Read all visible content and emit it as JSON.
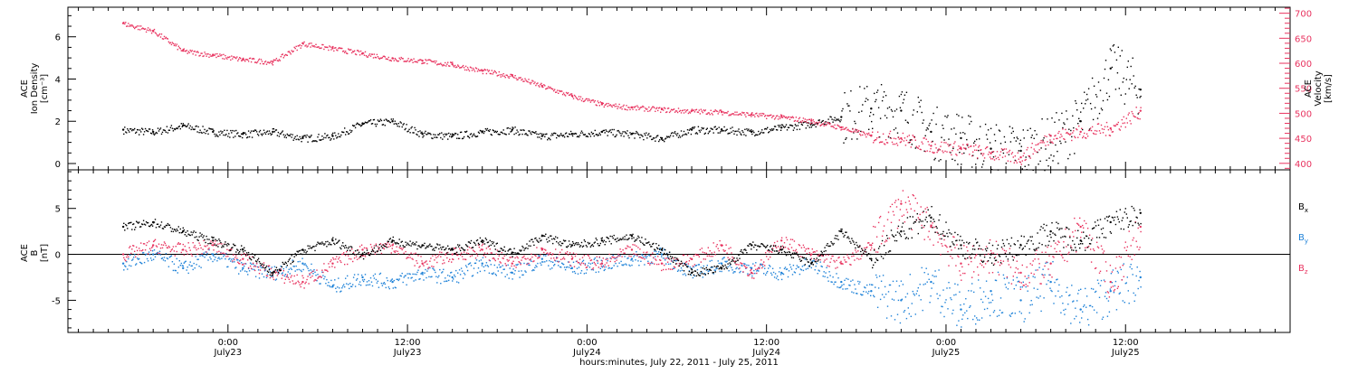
{
  "colors": {
    "black": "#000000",
    "pink": "#e8335f",
    "blue": "#1e82d8"
  },
  "chart_data": [
    {
      "type": "scatter",
      "panel": "top",
      "left_label_lines": [
        "ACE",
        "Ion Density",
        "[cm⁻³]"
      ],
      "right_label_lines": [
        "ACE",
        "Velocity",
        "[km/s]"
      ],
      "left_ylim": [
        -0.3,
        7.4
      ],
      "left_yticks": [
        0,
        2,
        4,
        6
      ],
      "right_ylim": [
        387,
        712
      ],
      "right_yticks": [
        400,
        450,
        500,
        550,
        600,
        650,
        700
      ],
      "series": [
        {
          "axis": "left",
          "color": "black",
          "x": [
            0,
            2,
            4,
            6,
            8,
            10,
            12,
            14,
            16,
            18,
            20,
            22,
            24,
            26,
            28,
            30,
            32,
            34,
            36,
            38,
            40,
            42,
            44,
            46,
            48,
            50,
            52,
            54,
            56,
            58,
            60,
            62,
            64,
            66,
            68
          ],
          "y": [
            1.6,
            1.5,
            1.8,
            1.5,
            1.4,
            1.5,
            1.2,
            1.3,
            1.9,
            2.0,
            1.4,
            1.3,
            1.5,
            1.6,
            1.3,
            1.4,
            1.5,
            1.4,
            1.2,
            1.6,
            1.6,
            1.5,
            1.7,
            1.9,
            2.2,
            2.6,
            2.5,
            1.5,
            1.2,
            0.7,
            0.6,
            1.0,
            2.0,
            4.5,
            3.5
          ]
        },
        {
          "axis": "right",
          "color": "pink",
          "x": [
            0,
            2,
            4,
            6,
            8,
            10,
            12,
            14,
            16,
            18,
            20,
            22,
            24,
            26,
            28,
            30,
            32,
            34,
            36,
            38,
            40,
            42,
            44,
            46,
            48,
            50,
            52,
            54,
            56,
            58,
            60,
            62,
            64,
            66,
            68
          ],
          "y": [
            680,
            665,
            625,
            617,
            608,
            603,
            640,
            630,
            620,
            610,
            605,
            598,
            585,
            575,
            555,
            535,
            518,
            512,
            508,
            505,
            503,
            498,
            493,
            485,
            472,
            455,
            450,
            435,
            430,
            420,
            412,
            455,
            463,
            470,
            505
          ]
        }
      ]
    },
    {
      "type": "scatter",
      "panel": "bottom",
      "left_label_lines": [
        "ACE",
        "B",
        "[nT]"
      ],
      "ylim": [
        -8.5,
        9.2
      ],
      "yticks": [
        -5,
        0,
        5
      ],
      "xlabel": "hours:minutes, July 22, 2011 - July 25, 2011",
      "x_tick_labels": [
        {
          "time": "0:00",
          "date": "July23",
          "hour": 7
        },
        {
          "time": "12:00",
          "date": "July23",
          "hour": 19
        },
        {
          "time": "0:00",
          "date": "July24",
          "hour": 31
        },
        {
          "time": "12:00",
          "date": "July24",
          "hour": 43
        },
        {
          "time": "0:00",
          "date": "July25",
          "hour": 55
        },
        {
          "time": "12:00",
          "date": "July25",
          "hour": 67
        }
      ],
      "xlim": [
        -3.7,
        78
      ],
      "legend": [
        {
          "name": "B",
          "sub": "x",
          "color": "black"
        },
        {
          "name": "B",
          "sub": "y",
          "color": "blue"
        },
        {
          "name": "B",
          "sub": "z",
          "color": "pink"
        }
      ],
      "series": [
        {
          "name": "Bx",
          "color": "black",
          "x": [
            0,
            2,
            4,
            6,
            8,
            10,
            12,
            14,
            16,
            18,
            20,
            22,
            24,
            26,
            28,
            30,
            32,
            34,
            36,
            38,
            40,
            42,
            44,
            46,
            48,
            50,
            52,
            54,
            56,
            58,
            60,
            62,
            64,
            66,
            68
          ],
          "y": [
            3,
            3.5,
            2.5,
            1.5,
            0.5,
            -2,
            0.5,
            1.5,
            0,
            1.5,
            1,
            0.5,
            1.5,
            0.2,
            2,
            1,
            1.5,
            2,
            0.5,
            -2,
            -1.5,
            1,
            0.5,
            -1,
            2.5,
            -0.5,
            2.5,
            4,
            1,
            0,
            1,
            2.5,
            1.5,
            3.5,
            4.5
          ]
        },
        {
          "name": "By",
          "color": "blue",
          "x": [
            0,
            2,
            4,
            6,
            8,
            10,
            12,
            14,
            16,
            18,
            20,
            22,
            24,
            26,
            28,
            30,
            32,
            34,
            36,
            38,
            40,
            42,
            44,
            46,
            48,
            50,
            52,
            54,
            56,
            58,
            60,
            62,
            64,
            66,
            68
          ],
          "y": [
            -1,
            0,
            -1.5,
            0,
            -1.5,
            -2,
            -1,
            -3.5,
            -2.5,
            -3,
            -2,
            -2.5,
            -1,
            -2,
            -0.5,
            -1.5,
            -1,
            -0.5,
            0,
            -2,
            -1,
            -1.5,
            -2,
            -1,
            -3,
            -4,
            -5,
            -3,
            -6,
            -4,
            -5,
            -3,
            -6,
            -4,
            -2.5
          ]
        },
        {
          "name": "Bz",
          "color": "pink",
          "x": [
            0,
            2,
            4,
            6,
            8,
            10,
            12,
            14,
            16,
            18,
            20,
            22,
            24,
            26,
            28,
            30,
            32,
            34,
            36,
            38,
            40,
            42,
            44,
            46,
            48,
            50,
            52,
            54,
            56,
            58,
            60,
            62,
            64,
            66,
            68
          ],
          "y": [
            0,
            1,
            0.5,
            1,
            -0.5,
            -2,
            -3,
            -1,
            0.5,
            1,
            -1,
            0,
            0.5,
            -1,
            0.5,
            -0.5,
            -1,
            0.5,
            -1,
            -0.5,
            1,
            -2,
            1.5,
            0,
            -1,
            1,
            5.5,
            3,
            -1,
            0,
            -2,
            -1,
            3,
            -3,
            3
          ]
        }
      ]
    }
  ]
}
